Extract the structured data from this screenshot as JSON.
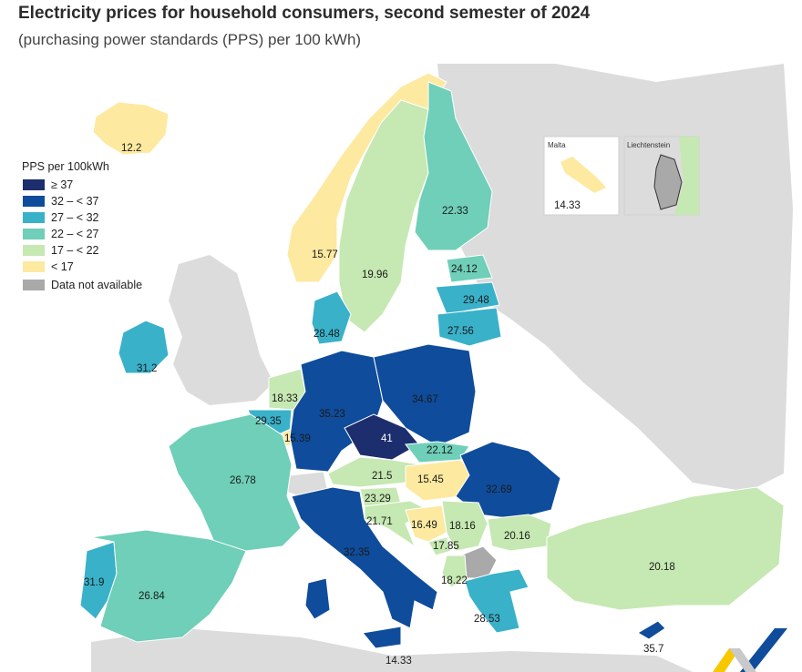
{
  "header": {
    "title": "Electricity prices for household consumers, second semester of 2024",
    "subtitle": "(purchasing power standards (PPS) per 100 kWh)"
  },
  "colors": {
    "c37plus": "#1d2e6e",
    "c32_37": "#0f4c9b",
    "c27_32": "#39b1c9",
    "c22_27": "#6fcfb8",
    "c17_22": "#c6e8b2",
    "c_lt17": "#fde9a0",
    "na": "#a9a9a9",
    "background_land": "#dcdcdc"
  },
  "legend": {
    "title": "PPS per 100kWh",
    "items": [
      {
        "label": "≥ 37",
        "color": "#1d2e6e"
      },
      {
        "label": "32 – < 37",
        "color": "#0f4c9b"
      },
      {
        "label": "27 – < 32",
        "color": "#39b1c9"
      },
      {
        "label": "22 – < 27",
        "color": "#6fcfb8"
      },
      {
        "label": "17 – < 22",
        "color": "#c6e8b2"
      },
      {
        "label": "< 17",
        "color": "#fde9a0"
      }
    ],
    "na_label": "Data not available",
    "na_color": "#a9a9a9"
  },
  "insets": {
    "malta": {
      "title": "Malta",
      "value": "14.33"
    },
    "liechtenstein": {
      "title": "Liechtenstein"
    }
  },
  "values": {
    "iceland": "12.2",
    "norway": "15.77",
    "sweden": "19.96",
    "finland": "22.33",
    "estonia": "24.12",
    "latvia": "29.48",
    "lithuania": "27.56",
    "denmark": "28.48",
    "ireland": "31.2",
    "netherlands": "18.33",
    "belgium": "29.35",
    "luxembourg": "15.39",
    "germany": "35.23",
    "poland": "34.67",
    "czechia": "41",
    "slovakia": "22.12",
    "austria": "21.5",
    "hungary": "15.45",
    "romania": "32.69",
    "france": "26.78",
    "slovenia": "23.29",
    "croatia": "21.71",
    "bosnia": "16.49",
    "serbia": "18.16",
    "montenegro": "17.85",
    "bulgaria": "20.16",
    "north_macedonia": "18.22",
    "italy": "32.35",
    "portugal": "31.9",
    "spain": "26.84",
    "greece": "28.53",
    "turkey": "20.18",
    "cyprus": "35.7",
    "malta": "14.33"
  }
}
